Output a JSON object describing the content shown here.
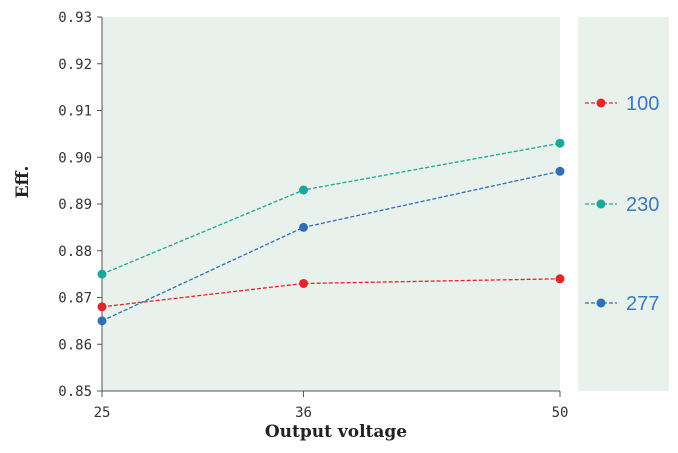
{
  "chart_data": {
    "type": "line",
    "title": "",
    "xlabel": "Output voltage",
    "ylabel": "Eff.",
    "x": [
      25,
      36,
      50
    ],
    "x_tick_labels": [
      "25",
      "36",
      "50"
    ],
    "ylim": [
      0.85,
      0.93
    ],
    "y_ticks": [
      0.85,
      0.86,
      0.87,
      0.88,
      0.89,
      0.9,
      0.91,
      0.92,
      0.93
    ],
    "y_tick_labels": [
      "0.85",
      "0.86",
      "0.87",
      "0.88",
      "0.89",
      "0.90",
      "0.91",
      "0.92",
      "0.93"
    ],
    "grid": false,
    "line_style": "dashed",
    "marker": "circle",
    "plot_background": "#e9f1ec",
    "legend_position": "right",
    "series": [
      {
        "name": "100",
        "color": "#e8232a",
        "values": [
          0.868,
          0.873,
          0.874
        ]
      },
      {
        "name": "230",
        "color": "#1aa89a",
        "values": [
          0.875,
          0.893,
          0.903
        ]
      },
      {
        "name": "277",
        "color": "#2e6fb5",
        "values": [
          0.865,
          0.885,
          0.897
        ]
      }
    ]
  }
}
